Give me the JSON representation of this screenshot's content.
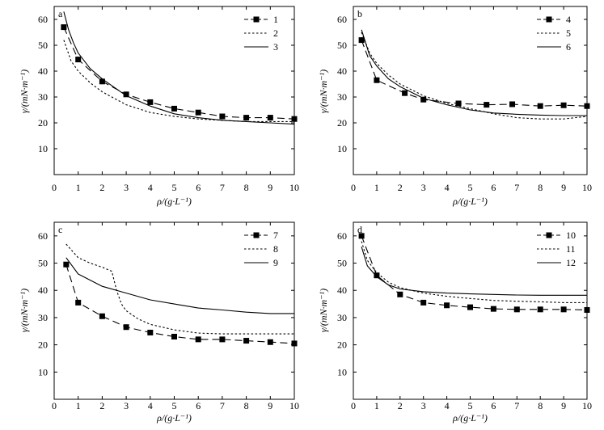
{
  "chart_data": [
    {
      "type": "line",
      "panel_label": "a",
      "xlabel": "ρ/(g·L⁻¹)",
      "ylabel": "γ/(mN·m⁻¹)",
      "xlim": [
        0,
        10
      ],
      "ylim": [
        0,
        65
      ],
      "xticks": [
        0,
        1,
        2,
        3,
        4,
        5,
        6,
        7,
        8,
        9,
        10
      ],
      "yticks": [
        10,
        20,
        30,
        40,
        50,
        60
      ],
      "legend_position": "top-right",
      "series": [
        {
          "name": "1",
          "style": "dash-marker",
          "x": [
            0.4,
            1,
            2,
            3,
            4,
            5,
            6,
            7,
            8,
            9,
            10
          ],
          "y": [
            57,
            44.5,
            36,
            31,
            28,
            25.5,
            24,
            22.5,
            22,
            22,
            21.5
          ]
        },
        {
          "name": "2",
          "style": "dotted",
          "x": [
            0.4,
            0.7,
            1,
            1.5,
            2,
            3,
            4,
            5,
            6,
            7,
            8,
            9,
            10
          ],
          "y": [
            52,
            44,
            40,
            35.5,
            32,
            27,
            24,
            22.5,
            21.5,
            21,
            20.5,
            20.5,
            20.5
          ]
        },
        {
          "name": "3",
          "style": "solid",
          "x": [
            0.4,
            0.6,
            0.8,
            1,
            1.5,
            2,
            3,
            4,
            5,
            6,
            7,
            8,
            9,
            10
          ],
          "y": [
            63,
            56,
            51,
            47,
            41,
            37,
            30.5,
            26.5,
            23.5,
            22,
            21,
            20.5,
            20,
            19.5
          ]
        }
      ]
    },
    {
      "type": "line",
      "panel_label": "b",
      "xlabel": "ρ/(g·L⁻¹)",
      "ylabel": "γ/(mN·m⁻¹)",
      "xlim": [
        0,
        10
      ],
      "ylim": [
        0,
        65
      ],
      "xticks": [
        0,
        1,
        2,
        3,
        4,
        5,
        6,
        7,
        8,
        9,
        10
      ],
      "yticks": [
        10,
        20,
        30,
        40,
        50,
        60
      ],
      "legend_position": "top-right",
      "series": [
        {
          "name": "4",
          "style": "dash-marker",
          "x": [
            0.35,
            1,
            2.2,
            3,
            4.5,
            5.7,
            6.8,
            8,
            9,
            10
          ],
          "y": [
            52,
            36.5,
            31.5,
            29,
            27.5,
            27,
            27.2,
            26.5,
            26.8,
            26.5
          ]
        },
        {
          "name": "5",
          "style": "dotted",
          "x": [
            0.35,
            0.7,
            1,
            1.5,
            2,
            3,
            4,
            5,
            6,
            7,
            8,
            9,
            10
          ],
          "y": [
            55,
            47,
            43,
            38.5,
            35,
            30.5,
            27.5,
            25.5,
            23.5,
            22,
            21.5,
            21.5,
            22.5
          ]
        },
        {
          "name": "6",
          "style": "solid",
          "x": [
            0.35,
            0.7,
            1,
            1.5,
            2,
            3,
            4,
            5,
            6,
            7,
            8,
            9,
            10
          ],
          "y": [
            56,
            46,
            42,
            37,
            34,
            29.5,
            27,
            25,
            23.8,
            23.3,
            23,
            22.8,
            22.8
          ]
        }
      ]
    },
    {
      "type": "line",
      "panel_label": "c",
      "xlabel": "ρ/(g·L⁻¹)",
      "ylabel": "γ/(mN·m⁻¹)",
      "xlim": [
        0,
        10
      ],
      "ylim": [
        0,
        65
      ],
      "xticks": [
        0,
        1,
        2,
        3,
        4,
        5,
        6,
        7,
        8,
        9,
        10
      ],
      "yticks": [
        10,
        20,
        30,
        40,
        50,
        60
      ],
      "legend_position": "top-right",
      "series": [
        {
          "name": "7",
          "style": "dash-marker",
          "x": [
            0.5,
            1,
            2,
            3,
            4,
            5,
            6,
            7,
            8,
            9,
            10
          ],
          "y": [
            49.5,
            35.5,
            30.5,
            26.5,
            24.5,
            23,
            22,
            22,
            21.5,
            21,
            20.5
          ]
        },
        {
          "name": "8",
          "style": "dotted",
          "x": [
            0.5,
            1,
            1.5,
            2,
            2.4,
            2.6,
            2.8,
            3,
            3.5,
            4,
            5,
            6,
            7,
            8,
            9,
            10
          ],
          "y": [
            57,
            52,
            50,
            48.5,
            47,
            40,
            35,
            32.5,
            29.5,
            27.5,
            25.5,
            24.3,
            24,
            24,
            24,
            24
          ]
        },
        {
          "name": "9",
          "style": "solid",
          "x": [
            0.5,
            1,
            2,
            3,
            4,
            5,
            6,
            7,
            8,
            9,
            10
          ],
          "y": [
            52,
            46,
            41.5,
            39,
            36.5,
            35,
            33.5,
            32.8,
            32,
            31.5,
            31.5
          ]
        }
      ]
    },
    {
      "type": "line",
      "panel_label": "d",
      "xlabel": "ρ/(g·L⁻¹)",
      "ylabel": "γ/(mN·m⁻¹)",
      "xlim": [
        0,
        10
      ],
      "ylim": [
        0,
        65
      ],
      "xticks": [
        0,
        1,
        2,
        3,
        4,
        5,
        6,
        7,
        8,
        9,
        10
      ],
      "yticks": [
        10,
        20,
        30,
        40,
        50,
        60
      ],
      "legend_position": "top-right",
      "series": [
        {
          "name": "10",
          "style": "dash-marker",
          "x": [
            0.35,
            1,
            2,
            3,
            4,
            5,
            6,
            7,
            8,
            9,
            10
          ],
          "y": [
            60,
            45.5,
            38.5,
            35.5,
            34.5,
            33.8,
            33.2,
            33,
            33,
            33,
            32.8
          ]
        },
        {
          "name": "11",
          "style": "dotted",
          "x": [
            0.35,
            0.6,
            1,
            1.5,
            2,
            3,
            4,
            5,
            6,
            7,
            8,
            9,
            10
          ],
          "y": [
            58,
            51,
            46.5,
            43,
            41,
            39,
            37.8,
            37,
            36.3,
            36,
            35.8,
            35.5,
            35.5
          ]
        },
        {
          "name": "12",
          "style": "solid",
          "x": [
            0.35,
            0.6,
            1,
            1.5,
            2,
            3,
            4,
            5,
            6,
            7,
            8,
            9,
            10
          ],
          "y": [
            56,
            49,
            45,
            42,
            40.5,
            39.5,
            39,
            38.7,
            38.5,
            38.3,
            38.2,
            38.2,
            38.2
          ]
        }
      ]
    }
  ]
}
